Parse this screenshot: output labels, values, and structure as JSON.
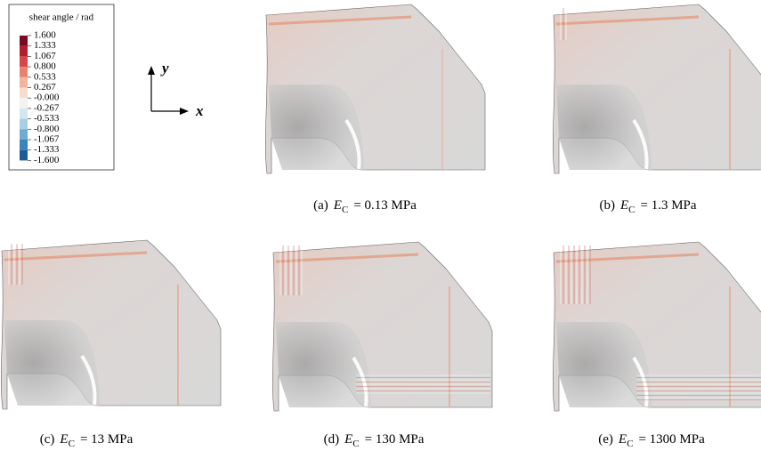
{
  "legend": {
    "title": "shear angle / rad",
    "labels": [
      "1.600",
      "1.333",
      "1.067",
      "0.800",
      "0.533",
      "0.267",
      "-0.000",
      "-0.267",
      "-0.533",
      "-0.800",
      "-1.067",
      "-1.333",
      "-1.600"
    ],
    "colors": [
      "#7a0a22",
      "#b01e30",
      "#d6454a",
      "#e8826a",
      "#f2b59b",
      "#f7dccd",
      "#f2f2f2",
      "#d6e6f0",
      "#a9cde3",
      "#6eacd1",
      "#3b83bb",
      "#1c5c9b",
      "#0a3468"
    ]
  },
  "axes": {
    "y": "y",
    "x": "x"
  },
  "panels": [
    {
      "tag": "(a)",
      "var": "E",
      "sub": "C",
      "text": "= 0.13 MPa"
    },
    {
      "tag": "(b)",
      "var": "E",
      "sub": "C",
      "text": "= 1.3 MPa"
    },
    {
      "tag": "(c)",
      "var": "E",
      "sub": "C",
      "text": "= 13 MPa"
    },
    {
      "tag": "(d)",
      "var": "E",
      "sub": "C",
      "text": "= 130 MPa"
    },
    {
      "tag": "(e)",
      "var": "E",
      "sub": "C",
      "text": "= 1300 MPa"
    }
  ]
}
